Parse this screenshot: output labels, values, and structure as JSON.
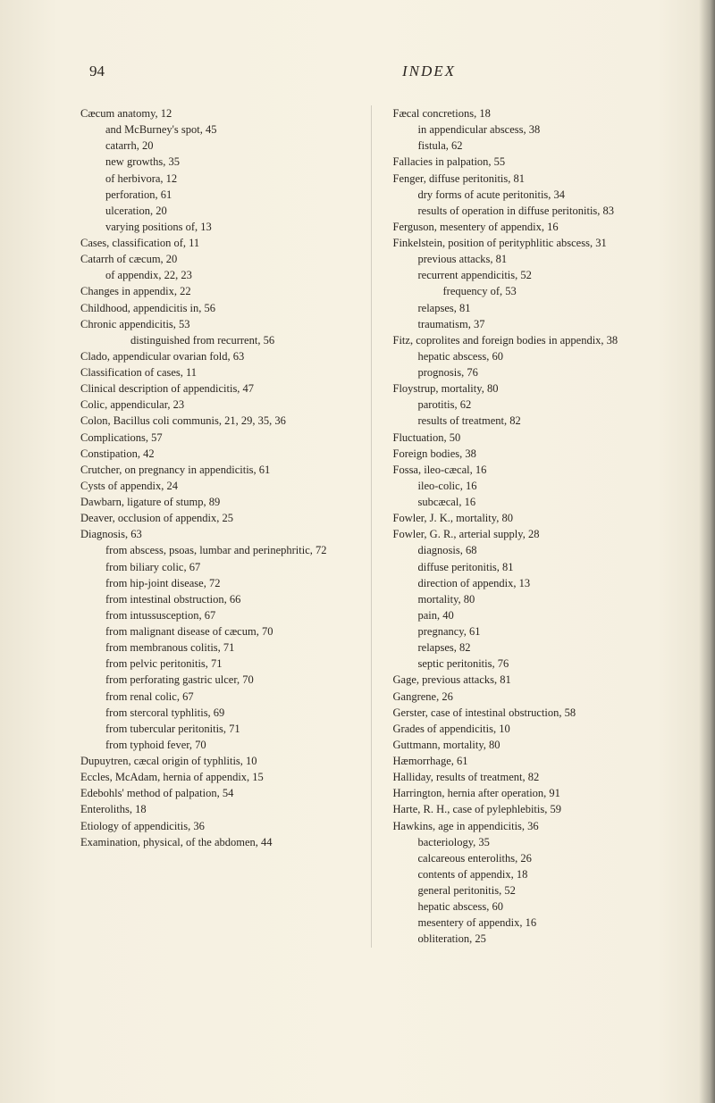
{
  "header": {
    "pageNumber": "94",
    "sectionTitle": "INDEX"
  },
  "leftColumn": [
    {
      "t": "Cæcum anatomy, 12",
      "l": 0
    },
    {
      "t": "and McBurney's spot, 45",
      "l": 1
    },
    {
      "t": "catarrh, 20",
      "l": 1
    },
    {
      "t": "new growths, 35",
      "l": 1
    },
    {
      "t": "of herbivora, 12",
      "l": 1
    },
    {
      "t": "perforation, 61",
      "l": 1
    },
    {
      "t": "ulceration, 20",
      "l": 1
    },
    {
      "t": "varying positions of, 13",
      "l": 1
    },
    {
      "t": "Cases, classification of, 11",
      "l": 0
    },
    {
      "t": "Catarrh of cæcum, 20",
      "l": 0
    },
    {
      "t": "of appendix, 22, 23",
      "l": 1
    },
    {
      "t": "Changes in appendix, 22",
      "l": 0
    },
    {
      "t": "Childhood, appendicitis in, 56",
      "l": 0
    },
    {
      "t": "Chronic appendicitis, 53",
      "l": 0
    },
    {
      "t": "distinguished from recurrent, 56",
      "l": 2
    },
    {
      "t": "Clado, appendicular ovarian fold, 63",
      "l": 0
    },
    {
      "t": "Classification of cases, 11",
      "l": 0
    },
    {
      "t": "Clinical description of appendicitis, 47",
      "l": 0
    },
    {
      "t": "Colic, appendicular, 23",
      "l": 0
    },
    {
      "t": "Colon, Bacillus coli communis, 21, 29, 35, 36",
      "l": 0
    },
    {
      "t": "Complications, 57",
      "l": 0
    },
    {
      "t": "Constipation, 42",
      "l": 0
    },
    {
      "t": "Crutcher, on pregnancy in appendicitis, 61",
      "l": 0
    },
    {
      "t": "Cysts of appendix, 24",
      "l": 0
    },
    {
      "t": " ",
      "l": 0
    },
    {
      "t": "Dawbarn, ligature of stump, 89",
      "l": 0
    },
    {
      "t": "Deaver, occlusion of appendix, 25",
      "l": 0
    },
    {
      "t": "Diagnosis, 63",
      "l": 0
    },
    {
      "t": "from abscess, psoas, lumbar and perinephritic, 72",
      "l": 1
    },
    {
      "t": "from biliary colic, 67",
      "l": 1
    },
    {
      "t": "from hip-joint disease, 72",
      "l": 1
    },
    {
      "t": "from intestinal obstruction, 66",
      "l": 1
    },
    {
      "t": "from intussusception, 67",
      "l": 1
    },
    {
      "t": "from malignant disease of cæcum, 70",
      "l": 1
    },
    {
      "t": "from membranous colitis, 71",
      "l": 1
    },
    {
      "t": "from pelvic peritonitis, 71",
      "l": 1
    },
    {
      "t": "from perforating gastric ulcer, 70",
      "l": 1
    },
    {
      "t": "from renal colic, 67",
      "l": 1
    },
    {
      "t": "from stercoral typhlitis, 69",
      "l": 1
    },
    {
      "t": "from tubercular peritonitis, 71",
      "l": 1
    },
    {
      "t": "from typhoid fever, 70",
      "l": 1
    },
    {
      "t": "Dupuytren, cæcal origin of typhlitis, 10",
      "l": 0
    },
    {
      "t": " ",
      "l": 0
    },
    {
      "t": "Eccles, McAdam, hernia of appendix, 15",
      "l": 0
    },
    {
      "t": "Edebohls' method of palpation, 54",
      "l": 0
    },
    {
      "t": "Enteroliths, 18",
      "l": 0
    },
    {
      "t": "Etiology of appendicitis, 36",
      "l": 0
    },
    {
      "t": "Examination, physical, of the abdomen, 44",
      "l": 0
    }
  ],
  "rightColumn": [
    {
      "t": "Fæcal concretions, 18",
      "l": 0
    },
    {
      "t": "in appendicular abscess, 38",
      "l": 1
    },
    {
      "t": "fistula, 62",
      "l": 1
    },
    {
      "t": "Fallacies in palpation, 55",
      "l": 0
    },
    {
      "t": "Fenger, diffuse peritonitis, 81",
      "l": 0
    },
    {
      "t": "dry forms of acute peritonitis, 34",
      "l": 1
    },
    {
      "t": "results of operation in diffuse peritonitis, 83",
      "l": 1
    },
    {
      "t": "Ferguson, mesentery of appendix, 16",
      "l": 0
    },
    {
      "t": "Finkelstein, position of perityphlitic abscess, 31",
      "l": 0
    },
    {
      "t": "previous attacks, 81",
      "l": 1
    },
    {
      "t": "recurrent appendicitis, 52",
      "l": 1
    },
    {
      "t": "frequency of, 53",
      "l": 2
    },
    {
      "t": "relapses, 81",
      "l": 1
    },
    {
      "t": "traumatism, 37",
      "l": 1
    },
    {
      "t": "Fitz, coprolites and foreign bodies in appendix, 38",
      "l": 0
    },
    {
      "t": "hepatic abscess, 60",
      "l": 1
    },
    {
      "t": "prognosis, 76",
      "l": 1
    },
    {
      "t": "Floystrup, mortality, 80",
      "l": 0
    },
    {
      "t": "parotitis, 62",
      "l": 1
    },
    {
      "t": "results of treatment, 82",
      "l": 1
    },
    {
      "t": "Fluctuation, 50",
      "l": 0
    },
    {
      "t": "Foreign bodies, 38",
      "l": 0
    },
    {
      "t": "Fossa, ileo-cæcal, 16",
      "l": 0
    },
    {
      "t": "ileo-colic, 16",
      "l": 1
    },
    {
      "t": "subcæcal, 16",
      "l": 1
    },
    {
      "t": "Fowler, J. K., mortality, 80",
      "l": 0
    },
    {
      "t": "Fowler, G. R., arterial supply, 28",
      "l": 0
    },
    {
      "t": "diagnosis, 68",
      "l": 1
    },
    {
      "t": "diffuse peritonitis, 81",
      "l": 1
    },
    {
      "t": "direction of appendix, 13",
      "l": 1
    },
    {
      "t": "mortality, 80",
      "l": 1
    },
    {
      "t": "pain, 40",
      "l": 1
    },
    {
      "t": "pregnancy, 61",
      "l": 1
    },
    {
      "t": "relapses, 82",
      "l": 1
    },
    {
      "t": "septic peritonitis, 76",
      "l": 1
    },
    {
      "t": " ",
      "l": 0
    },
    {
      "t": "Gage, previous attacks, 81",
      "l": 0
    },
    {
      "t": "Gangrene, 26",
      "l": 0
    },
    {
      "t": "Gerster, case of intestinal obstruction, 58",
      "l": 0
    },
    {
      "t": "Grades of appendicitis, 10",
      "l": 0
    },
    {
      "t": "Guttmann, mortality, 80",
      "l": 0
    },
    {
      "t": " ",
      "l": 0
    },
    {
      "t": "Hæmorrhage, 61",
      "l": 0
    },
    {
      "t": "Halliday, results of treatment, 82",
      "l": 0
    },
    {
      "t": "Harrington, hernia after operation, 91",
      "l": 0
    },
    {
      "t": "Harte, R. H., case of pylephlebitis, 59",
      "l": 0
    },
    {
      "t": "Hawkins, age in appendicitis, 36",
      "l": 0
    },
    {
      "t": "bacteriology, 35",
      "l": 1
    },
    {
      "t": "calcareous enteroliths, 26",
      "l": 1
    },
    {
      "t": "contents of appendix, 18",
      "l": 1
    },
    {
      "t": "general peritonitis, 52",
      "l": 1
    },
    {
      "t": "hepatic abscess, 60",
      "l": 1
    },
    {
      "t": "mesentery of appendix, 16",
      "l": 1
    },
    {
      "t": "obliteration, 25",
      "l": 1
    }
  ]
}
